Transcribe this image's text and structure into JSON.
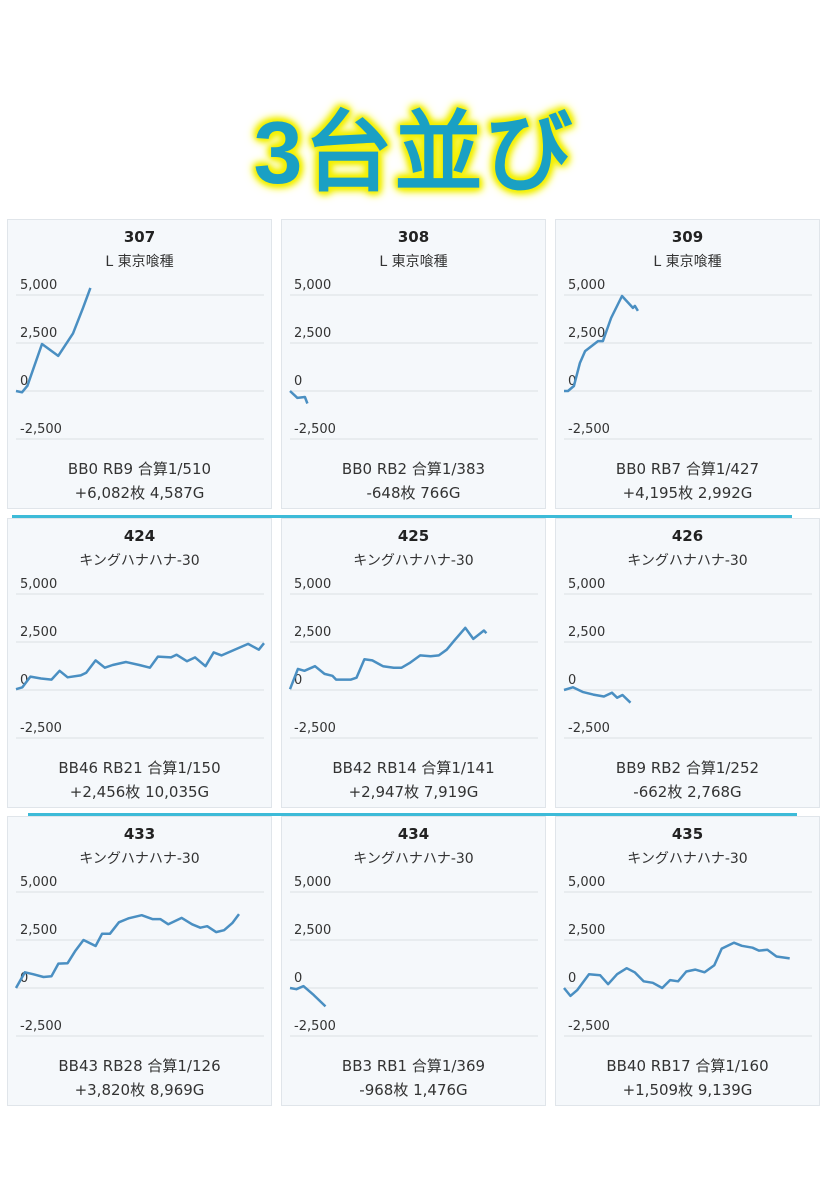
{
  "title": "3台並び",
  "colors": {
    "line": "#4a8fc2",
    "grid": "#e3e7eb",
    "separator": "#3dbbd8",
    "title_fill": "#1aa0c4",
    "title_glow": "#f5f000"
  },
  "chart_data": {
    "type": "line",
    "y_ticks": [
      "5,000",
      "2,500",
      "0",
      "-2,500"
    ],
    "y_tick_values": [
      5000,
      2500,
      0,
      -2500
    ],
    "ylim": [
      -2500,
      5000
    ],
    "x_unit": "percent of axis width",
    "machines": [
      {
        "number": "307",
        "model": "L 東京喰種",
        "stats1": "BB0 RB9 合算1/510",
        "stats2": "+6,082枚 4,587G",
        "x": [
          0,
          2.4,
          4.6,
          10.5,
          17,
          23,
          27,
          30
        ],
        "y": [
          0,
          -70,
          270,
          2450,
          1830,
          3000,
          4330,
          5370
        ]
      },
      {
        "number": "308",
        "model": "L 東京喰種",
        "stats1": "BB0 RB2 合算1/383",
        "stats2": "-648枚 766G",
        "x": [
          0,
          3,
          6,
          7
        ],
        "y": [
          0,
          -360,
          -310,
          -650
        ]
      },
      {
        "number": "309",
        "model": "L 東京喰種",
        "stats1": "BB0 RB7 合算1/427",
        "stats2": "+4,195枚 2,992G",
        "x": [
          0,
          1.6,
          4,
          6.4,
          8.5,
          13.7,
          15.7,
          19,
          23.4,
          27.8,
          28.6,
          29.8
        ],
        "y": [
          0,
          0,
          260,
          1460,
          2080,
          2600,
          2600,
          3800,
          4950,
          4330,
          4430,
          4170
        ]
      },
      {
        "number": "424",
        "model": "キングハナハナ-30",
        "stats1": "BB46 RB21 合算1/150",
        "stats2": "+2,456枚 10,035G",
        "x": [
          0,
          2.6,
          5.8,
          10.1,
          14.3,
          17.6,
          20.8,
          26.1,
          28.3,
          32.1,
          35.8,
          39,
          44.3,
          49.7,
          54,
          57.2,
          62.5,
          64.7,
          68.9,
          72.2,
          76.4,
          79.7,
          82.9,
          93.6,
          97.9,
          100
        ],
        "y": [
          40,
          140,
          700,
          600,
          540,
          1000,
          660,
          760,
          900,
          1540,
          1160,
          1300,
          1460,
          1300,
          1160,
          1740,
          1700,
          1840,
          1500,
          1700,
          1240,
          1960,
          1800,
          2400,
          2100,
          2440
        ]
      },
      {
        "number": "425",
        "model": "キングハナハナ-30",
        "stats1": "BB42 RB14 合算1/141",
        "stats2": "+2,947枚 7,919G",
        "x": [
          0,
          3.2,
          5.8,
          10.1,
          13.9,
          17.1,
          18.6,
          24.6,
          26.8,
          30,
          33.2,
          37.5,
          41.8,
          45,
          48.2,
          52.5,
          56.7,
          60,
          63.2,
          66.4,
          70.7,
          73.9,
          78.2,
          79.2
        ],
        "y": [
          40,
          1100,
          1000,
          1240,
          840,
          740,
          540,
          540,
          640,
          1600,
          1540,
          1240,
          1160,
          1160,
          1400,
          1800,
          1760,
          1800,
          2100,
          2600,
          3240,
          2660,
          3100,
          2960
        ]
      },
      {
        "number": "426",
        "model": "キングハナハナ-30",
        "stats1": "BB9 RB2 合算1/252",
        "stats2": "-662枚 2,768G",
        "x": [
          0,
          3.6,
          7.5,
          11.8,
          16.1,
          19.3,
          21.4,
          23.6,
          26.8
        ],
        "y": [
          0,
          140,
          -100,
          -240,
          -340,
          -140,
          -400,
          -260,
          -660
        ]
      },
      {
        "number": "433",
        "model": "キングハナハナ-30",
        "stats1": "BB43 RB28 合算1/126",
        "stats2": "+3,820枚 8,969G",
        "x": [
          0,
          3.6,
          6.9,
          11.1,
          14.3,
          17.1,
          20.8,
          24,
          27.2,
          32.1,
          34.7,
          37.9,
          41.5,
          45.4,
          50.7,
          55,
          58.2,
          61.4,
          66.8,
          71,
          74.3,
          77.1,
          80.7,
          83.9,
          87.2,
          89.9
        ],
        "y": [
          0,
          820,
          720,
          575,
          615,
          1270,
          1290,
          1950,
          2500,
          2190,
          2830,
          2830,
          3420,
          3630,
          3790,
          3590,
          3590,
          3320,
          3650,
          3320,
          3140,
          3220,
          2910,
          3010,
          3380,
          3850
        ]
      },
      {
        "number": "434",
        "model": "キングハナハナ-30",
        "stats1": "BB3 RB1 合算1/369",
        "stats2": "-968枚 1,476G",
        "x": [
          0,
          2.6,
          5.4,
          9.6,
          14.3
        ],
        "y": [
          0,
          -60,
          100,
          -370,
          -960
        ]
      },
      {
        "number": "435",
        "model": "キングハナハナ-30",
        "stats1": "BB40 RB17 合算1/160",
        "stats2": "+1,509枚 9,139G",
        "x": [
          0,
          2.6,
          5.4,
          10.1,
          14.6,
          17.8,
          21.4,
          25.3,
          28.5,
          32.1,
          35.8,
          39.6,
          42.8,
          46,
          49.3,
          52.9,
          56.7,
          60.6,
          63.6,
          68.5,
          71.7,
          76,
          78.6,
          82,
          85.7,
          91
        ],
        "y": [
          0,
          -410,
          -100,
          720,
          660,
          200,
          720,
          1030,
          820,
          350,
          270,
          0,
          410,
          350,
          860,
          960,
          820,
          1190,
          2050,
          2360,
          2200,
          2100,
          1950,
          1990,
          1640,
          1540
        ]
      }
    ]
  }
}
